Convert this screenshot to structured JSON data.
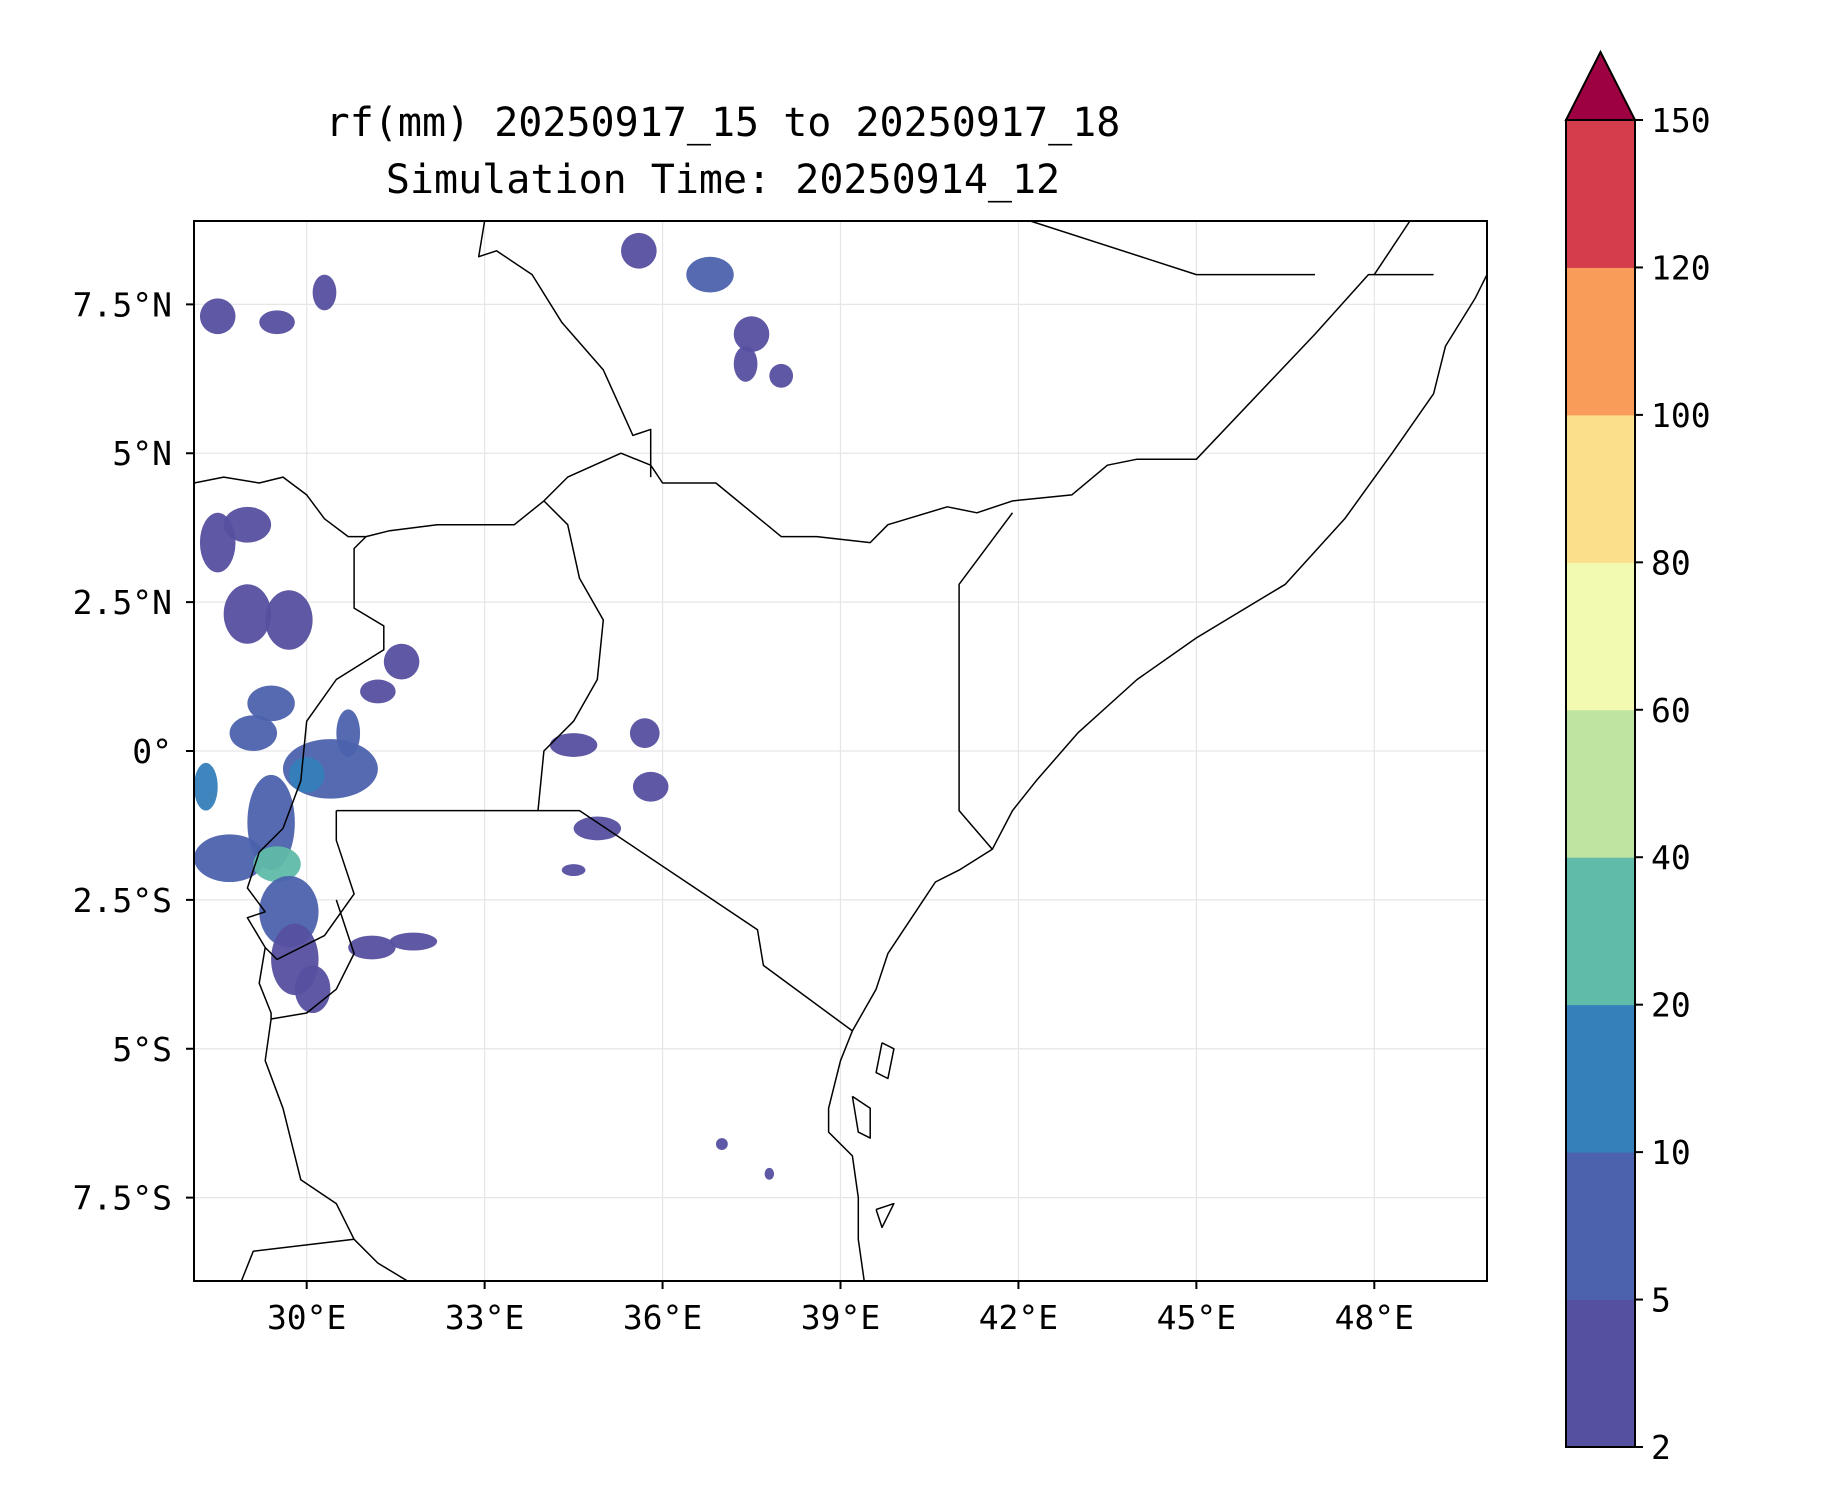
{
  "title": {
    "line1": "rf(mm) 20250917_15 to 20250917_18",
    "line2": "Simulation Time: 20250914_12"
  },
  "map": {
    "extent": {
      "lon_min": 28.1,
      "lon_max": 49.9,
      "lat_min": -8.9,
      "lat_max": 8.9
    },
    "lon_ticks": [
      {
        "value": 30,
        "label": "30°E"
      },
      {
        "value": 33,
        "label": "33°E"
      },
      {
        "value": 36,
        "label": "36°E"
      },
      {
        "value": 39,
        "label": "39°E"
      },
      {
        "value": 42,
        "label": "42°E"
      },
      {
        "value": 45,
        "label": "45°E"
      },
      {
        "value": 48,
        "label": "48°E"
      }
    ],
    "lat_ticks": [
      {
        "value": 7.5,
        "label": "7.5°N"
      },
      {
        "value": 5,
        "label": "5°N"
      },
      {
        "value": 2.5,
        "label": "2.5°N"
      },
      {
        "value": 0,
        "label": "0°"
      },
      {
        "value": -2.5,
        "label": "2.5°S"
      },
      {
        "value": -5,
        "label": "5°S"
      },
      {
        "value": -7.5,
        "label": "7.5°S"
      }
    ],
    "gridlines": true,
    "boundaries": [
      {
        "name": "south-sudan-uganda-north",
        "points": [
          [
            28.1,
            4.5
          ],
          [
            28.6,
            4.6
          ],
          [
            29.2,
            4.5
          ],
          [
            29.6,
            4.6
          ],
          [
            30.0,
            4.3
          ],
          [
            30.3,
            3.9
          ],
          [
            30.7,
            3.6
          ],
          [
            31.0,
            3.6
          ],
          [
            31.4,
            3.7
          ],
          [
            32.2,
            3.8
          ],
          [
            33.0,
            3.8
          ],
          [
            33.5,
            3.8
          ],
          [
            34.0,
            4.2
          ],
          [
            34.4,
            4.6
          ],
          [
            35.3,
            5.0
          ],
          [
            35.8,
            4.8
          ],
          [
            36.0,
            4.5
          ],
          [
            36.9,
            4.5
          ],
          [
            38.0,
            3.6
          ],
          [
            38.6,
            3.6
          ],
          [
            39.5,
            3.5
          ],
          [
            39.8,
            3.8
          ],
          [
            40.8,
            4.1
          ],
          [
            41.3,
            4.0
          ],
          [
            41.9,
            4.2
          ],
          [
            42.9,
            4.3
          ],
          [
            43.5,
            4.8
          ],
          [
            44.0,
            4.9
          ],
          [
            45.0,
            4.9
          ],
          [
            47.0,
            7.0
          ],
          [
            47.9,
            8.0
          ],
          [
            49.0,
            8.0
          ]
        ]
      },
      {
        "name": "ethiopia-sudan-west",
        "points": [
          [
            33.0,
            8.9
          ],
          [
            32.9,
            8.3
          ],
          [
            33.2,
            8.4
          ],
          [
            33.8,
            8.0
          ],
          [
            34.3,
            7.2
          ],
          [
            35.0,
            6.4
          ],
          [
            35.5,
            5.3
          ],
          [
            35.8,
            5.4
          ],
          [
            35.8,
            4.6
          ]
        ]
      },
      {
        "name": "somaliland-ethiopia",
        "points": [
          [
            42.2,
            8.9
          ],
          [
            45.0,
            8.0
          ],
          [
            47.0,
            8.0
          ]
        ]
      },
      {
        "name": "somalia-ethiopia-east",
        "points": [
          [
            48.0,
            8.0
          ],
          [
            48.6,
            8.9
          ]
        ]
      },
      {
        "name": "kenya-somalia",
        "points": [
          [
            41.9,
            4.0
          ],
          [
            41.0,
            2.8
          ],
          [
            41.0,
            -1.0
          ],
          [
            41.56,
            -1.65
          ]
        ]
      },
      {
        "name": "uganda-kenya",
        "points": [
          [
            34.0,
            4.2
          ],
          [
            34.4,
            3.8
          ],
          [
            34.6,
            2.9
          ],
          [
            35.0,
            2.2
          ],
          [
            34.9,
            1.2
          ],
          [
            34.5,
            0.5
          ],
          [
            34.0,
            0.0
          ],
          [
            33.9,
            -1.0
          ]
        ]
      },
      {
        "name": "kenya-tanzania",
        "points": [
          [
            33.9,
            -1.0
          ],
          [
            34.6,
            -1.0
          ],
          [
            37.6,
            -3.0
          ],
          [
            37.7,
            -3.6
          ],
          [
            39.2,
            -4.7
          ]
        ]
      },
      {
        "name": "uganda-drc",
        "points": [
          [
            31.0,
            3.6
          ],
          [
            30.8,
            3.4
          ],
          [
            30.8,
            2.4
          ],
          [
            31.3,
            2.1
          ],
          [
            31.3,
            1.7
          ],
          [
            30.5,
            1.2
          ],
          [
            30.0,
            0.5
          ],
          [
            29.9,
            -0.5
          ],
          [
            29.6,
            -1.3
          ]
        ]
      },
      {
        "name": "uganda-tanzania-rwanda",
        "points": [
          [
            30.5,
            -1.0
          ],
          [
            31.6,
            -1.0
          ],
          [
            33.9,
            -1.0
          ]
        ]
      },
      {
        "name": "rwanda-burundi",
        "points": [
          [
            29.6,
            -1.3
          ],
          [
            29.2,
            -1.7
          ],
          [
            29.0,
            -2.3
          ],
          [
            29.3,
            -2.7
          ],
          [
            29.0,
            -2.8
          ],
          [
            29.3,
            -3.3
          ],
          [
            29.5,
            -3.5
          ],
          [
            30.3,
            -3.1
          ],
          [
            30.8,
            -2.4
          ],
          [
            30.5,
            -1.5
          ],
          [
            30.5,
            -1.0
          ]
        ]
      },
      {
        "name": "burundi-tanzania-drc",
        "points": [
          [
            29.3,
            -3.3
          ],
          [
            29.2,
            -3.9
          ],
          [
            29.4,
            -4.4
          ],
          [
            29.4,
            -4.5
          ],
          [
            30.0,
            -4.4
          ],
          [
            30.5,
            -4.0
          ],
          [
            30.8,
            -3.4
          ],
          [
            30.5,
            -2.5
          ]
        ]
      },
      {
        "name": "tanzania-west-lake",
        "points": [
          [
            29.4,
            -4.5
          ],
          [
            29.3,
            -5.2
          ],
          [
            29.6,
            -6.0
          ],
          [
            29.9,
            -7.2
          ],
          [
            30.5,
            -7.6
          ],
          [
            30.8,
            -8.2
          ],
          [
            31.2,
            -8.6
          ],
          [
            31.7,
            -8.9
          ]
        ]
      },
      {
        "name": "zambia-tanzania",
        "points": [
          [
            28.9,
            -8.9
          ],
          [
            29.1,
            -8.4
          ],
          [
            30.8,
            -8.2
          ]
        ]
      },
      {
        "name": "somalia-coast",
        "points": [
          [
            49.9,
            8.0
          ],
          [
            49.7,
            7.6
          ],
          [
            49.2,
            6.8
          ],
          [
            49.0,
            6.0
          ],
          [
            48.3,
            5.0
          ],
          [
            47.5,
            3.9
          ],
          [
            46.5,
            2.8
          ],
          [
            45.5,
            2.2
          ],
          [
            45.0,
            1.9
          ],
          [
            44.0,
            1.2
          ],
          [
            43.0,
            0.3
          ],
          [
            42.3,
            -0.5
          ],
          [
            41.9,
            -1.0
          ],
          [
            41.56,
            -1.65
          ],
          [
            41.0,
            -2.0
          ],
          [
            40.6,
            -2.2
          ],
          [
            40.2,
            -2.8
          ],
          [
            39.8,
            -3.4
          ],
          [
            39.6,
            -4.0
          ],
          [
            39.2,
            -4.7
          ],
          [
            39.0,
            -5.2
          ],
          [
            38.8,
            -6.0
          ],
          [
            38.8,
            -6.4
          ],
          [
            39.2,
            -6.8
          ],
          [
            39.3,
            -7.5
          ],
          [
            39.3,
            -8.2
          ],
          [
            39.4,
            -8.9
          ]
        ]
      },
      {
        "name": "zanzibar",
        "points": [
          [
            39.2,
            -5.8
          ],
          [
            39.5,
            -6.0
          ],
          [
            39.5,
            -6.5
          ],
          [
            39.3,
            -6.4
          ],
          [
            39.2,
            -5.8
          ]
        ]
      },
      {
        "name": "pemba",
        "points": [
          [
            39.7,
            -4.9
          ],
          [
            39.9,
            -5.0
          ],
          [
            39.8,
            -5.5
          ],
          [
            39.6,
            -5.4
          ],
          [
            39.7,
            -4.9
          ]
        ]
      },
      {
        "name": "mafia",
        "points": [
          [
            39.6,
            -7.7
          ],
          [
            39.9,
            -7.6
          ],
          [
            39.7,
            -8.0
          ],
          [
            39.6,
            -7.7
          ]
        ]
      }
    ],
    "rain_cells": [
      {
        "lon": 28.5,
        "lat": 7.3,
        "rx": 0.3,
        "ry": 0.3,
        "mm": 3
      },
      {
        "lon": 29.5,
        "lat": 7.2,
        "rx": 0.3,
        "ry": 0.2,
        "mm": 3
      },
      {
        "lon": 30.3,
        "lat": 7.7,
        "rx": 0.2,
        "ry": 0.3,
        "mm": 3
      },
      {
        "lon": 29.0,
        "lat": 3.8,
        "rx": 0.4,
        "ry": 0.3,
        "mm": 4
      },
      {
        "lon": 28.5,
        "lat": 3.5,
        "rx": 0.3,
        "ry": 0.5,
        "mm": 4
      },
      {
        "lon": 29.0,
        "lat": 2.3,
        "rx": 0.4,
        "ry": 0.5,
        "mm": 4
      },
      {
        "lon": 29.7,
        "lat": 2.2,
        "rx": 0.4,
        "ry": 0.5,
        "mm": 4
      },
      {
        "lon": 31.6,
        "lat": 1.5,
        "rx": 0.3,
        "ry": 0.3,
        "mm": 4
      },
      {
        "lon": 31.2,
        "lat": 1.0,
        "rx": 0.3,
        "ry": 0.2,
        "mm": 4
      },
      {
        "lon": 29.4,
        "lat": 0.8,
        "rx": 0.4,
        "ry": 0.3,
        "mm": 6
      },
      {
        "lon": 29.1,
        "lat": 0.3,
        "rx": 0.4,
        "ry": 0.3,
        "mm": 6
      },
      {
        "lon": 30.7,
        "lat": 0.3,
        "rx": 0.2,
        "ry": 0.4,
        "mm": 6
      },
      {
        "lon": 30.4,
        "lat": -0.3,
        "rx": 0.8,
        "ry": 0.5,
        "mm": 7
      },
      {
        "lon": 30.0,
        "lat": -0.4,
        "rx": 0.3,
        "ry": 0.3,
        "mm": 18
      },
      {
        "lon": 28.3,
        "lat": -0.6,
        "rx": 0.2,
        "ry": 0.4,
        "mm": 14
      },
      {
        "lon": 29.4,
        "lat": -1.2,
        "rx": 0.4,
        "ry": 0.8,
        "mm": 7
      },
      {
        "lon": 28.7,
        "lat": -1.8,
        "rx": 0.6,
        "ry": 0.4,
        "mm": 8
      },
      {
        "lon": 29.5,
        "lat": -1.9,
        "rx": 0.4,
        "ry": 0.3,
        "mm": 25
      },
      {
        "lon": 29.7,
        "lat": -2.7,
        "rx": 0.5,
        "ry": 0.6,
        "mm": 6
      },
      {
        "lon": 29.8,
        "lat": -3.5,
        "rx": 0.4,
        "ry": 0.6,
        "mm": 4
      },
      {
        "lon": 30.1,
        "lat": -4.0,
        "rx": 0.3,
        "ry": 0.4,
        "mm": 3
      },
      {
        "lon": 31.1,
        "lat": -3.3,
        "rx": 0.4,
        "ry": 0.2,
        "mm": 3
      },
      {
        "lon": 31.8,
        "lat": -3.2,
        "rx": 0.4,
        "ry": 0.15,
        "mm": 3
      },
      {
        "lon": 34.5,
        "lat": 0.1,
        "rx": 0.4,
        "ry": 0.2,
        "mm": 4
      },
      {
        "lon": 35.7,
        "lat": 0.3,
        "rx": 0.25,
        "ry": 0.25,
        "mm": 3
      },
      {
        "lon": 35.8,
        "lat": -0.6,
        "rx": 0.3,
        "ry": 0.25,
        "mm": 3
      },
      {
        "lon": 34.9,
        "lat": -1.3,
        "rx": 0.4,
        "ry": 0.2,
        "mm": 3
      },
      {
        "lon": 34.5,
        "lat": -2.0,
        "rx": 0.2,
        "ry": 0.1,
        "mm": 3
      },
      {
        "lon": 35.6,
        "lat": 8.4,
        "rx": 0.3,
        "ry": 0.3,
        "mm": 3
      },
      {
        "lon": 36.8,
        "lat": 8.0,
        "rx": 0.4,
        "ry": 0.3,
        "mm": 5
      },
      {
        "lon": 37.5,
        "lat": 7.0,
        "rx": 0.3,
        "ry": 0.3,
        "mm": 3
      },
      {
        "lon": 37.4,
        "lat": 6.5,
        "rx": 0.2,
        "ry": 0.3,
        "mm": 3
      },
      {
        "lon": 38.0,
        "lat": 6.3,
        "rx": 0.2,
        "ry": 0.2,
        "mm": 3
      },
      {
        "lon": 37.0,
        "lat": -6.6,
        "rx": 0.1,
        "ry": 0.1,
        "mm": 3
      },
      {
        "lon": 37.8,
        "lat": -7.1,
        "rx": 0.08,
        "ry": 0.1,
        "mm": 3
      }
    ]
  },
  "colorbar": {
    "levels": [
      2,
      5,
      10,
      20,
      40,
      60,
      80,
      100,
      120,
      150
    ],
    "tick_labels": [
      "2",
      "5",
      "10",
      "20",
      "40",
      "60",
      "80",
      "100",
      "120",
      "150"
    ],
    "colors": [
      "#5650a0",
      "#4c62ad",
      "#3580bb",
      "#60bba8",
      "#bde4a1",
      "#f2f9b1",
      "#fcdf8a",
      "#fa9c59",
      "#d53d4d"
    ],
    "extend_color": "#9e0142",
    "extend": "max"
  },
  "frame_color": "#000000",
  "grid_color": "#e6e6e6",
  "coast_color": "#000000"
}
